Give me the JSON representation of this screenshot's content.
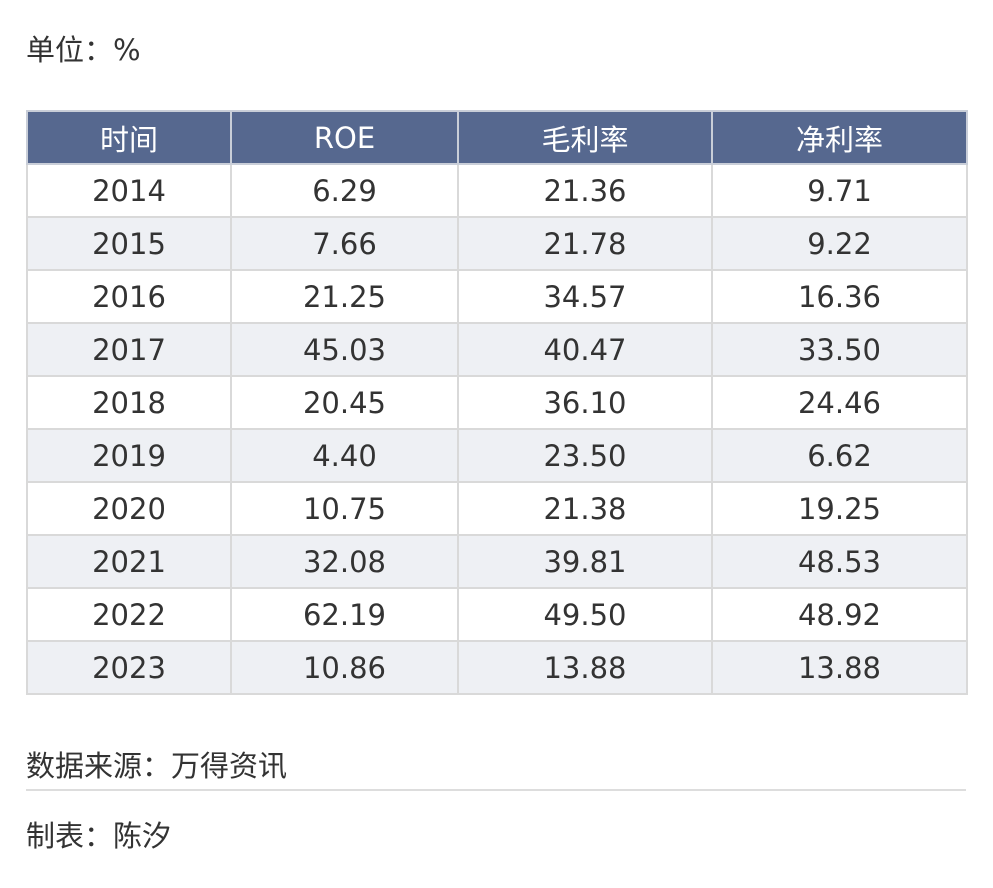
{
  "unit": "单位：%",
  "table": {
    "headers": [
      "时间",
      "ROE",
      "毛利率",
      "净利率"
    ],
    "rows": [
      [
        "2014",
        "6.29",
        "21.36",
        "9.71"
      ],
      [
        "2015",
        "7.66",
        "21.78",
        "9.22"
      ],
      [
        "2016",
        "21.25",
        "34.57",
        "16.36"
      ],
      [
        "2017",
        "45.03",
        "40.47",
        "33.50"
      ],
      [
        "2018",
        "20.45",
        "36.10",
        "24.46"
      ],
      [
        "2019",
        "4.40",
        "23.50",
        "6.62"
      ],
      [
        "2020",
        "10.75",
        "21.38",
        "19.25"
      ],
      [
        "2021",
        "32.08",
        "39.81",
        "48.53"
      ],
      [
        "2022",
        "62.19",
        "49.50",
        "48.92"
      ],
      [
        "2023",
        "10.86",
        "13.88",
        "13.88"
      ]
    ]
  },
  "source": "数据来源：万得资讯",
  "author": "制表：陈汐",
  "colors": {
    "header_bg": "#56688f",
    "header_text": "#ffffff",
    "stripe_bg": "#eef0f4",
    "border": "#d9d9d9"
  }
}
